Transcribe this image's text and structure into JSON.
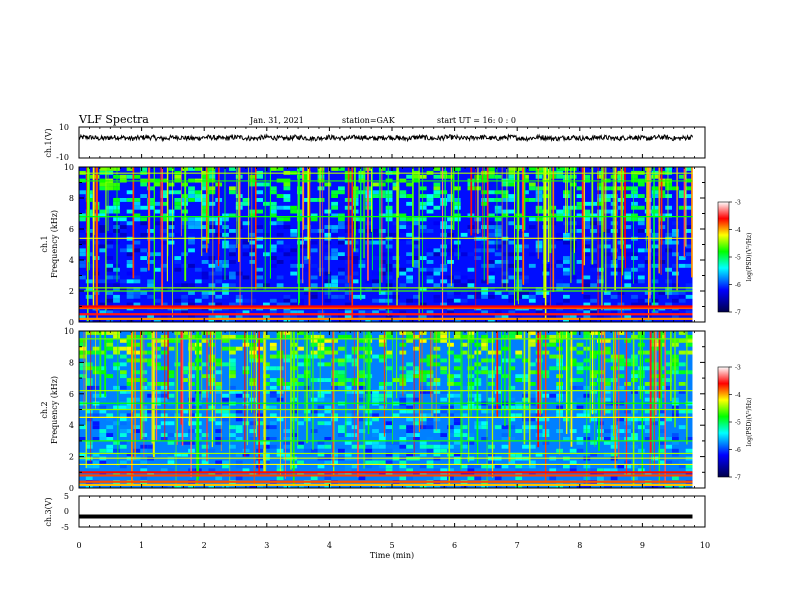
{
  "header": {
    "title": "VLF Spectra",
    "date": "Jan. 31, 2021",
    "station": "station=GAK",
    "start": "start  UT =   16: 0  : 0"
  },
  "chart_data": [
    {
      "type": "line",
      "panel": "ch1-waveform",
      "ylabel": "ch.1(V)",
      "ylim": [
        -10,
        10
      ],
      "yticks": [
        "10",
        "-10"
      ],
      "xlim": [
        0,
        10
      ],
      "series": [
        {
          "x_range": [
            0,
            9.8
          ],
          "description": "noisy waveform fluctuating near +3 V",
          "mean": 3,
          "amplitude": 2
        }
      ]
    },
    {
      "type": "heatmap",
      "panel": "ch1-spectrogram",
      "ylabel": "Frequency (kHz)",
      "channel_label": "ch.1",
      "ylim": [
        0,
        10
      ],
      "yticks": [
        "0",
        "2",
        "4",
        "6",
        "8",
        "10"
      ],
      "xlim": [
        0,
        10
      ],
      "data_x_range": [
        0,
        9.8
      ],
      "colorbar": {
        "label": "log(PSD)(V²/Hz)",
        "range": [
          -7,
          -3
        ],
        "ticks": [
          "-3",
          "-4",
          "-5",
          "-6",
          "-7"
        ]
      },
      "lines_khz": [
        0.2,
        0.5,
        0.9,
        1.0,
        2.0,
        2.2,
        5.4,
        6.8,
        9.1,
        9.6
      ],
      "background_level": -6.3
    },
    {
      "type": "heatmap",
      "panel": "ch2-spectrogram",
      "ylabel": "Frequency (kHz)",
      "channel_label": "ch.2",
      "ylim": [
        0,
        10
      ],
      "yticks": [
        "0",
        "2",
        "4",
        "6",
        "8",
        "10"
      ],
      "xlim": [
        0,
        10
      ],
      "data_x_range": [
        0,
        9.8
      ],
      "colorbar": {
        "label": "log(PSD)(V²/Hz)",
        "range": [
          -7,
          -3
        ],
        "ticks": [
          "-3",
          "-4",
          "-5",
          "-6",
          "-7"
        ]
      },
      "lines_khz": [
        0.2,
        0.4,
        0.8,
        1.0,
        1.5,
        1.9,
        2.2,
        3.0,
        4.5,
        5.0,
        5.4,
        6.2,
        9.5
      ],
      "background_level": -6.0
    },
    {
      "type": "line",
      "panel": "ch3-waveform",
      "ylabel": "ch.3(V)",
      "ylim": [
        -5,
        5
      ],
      "yticks": [
        "5",
        "0",
        "-5"
      ],
      "xlim": [
        0,
        10
      ],
      "xlabel": "Time (min)",
      "xticks": [
        "0",
        "1",
        "2",
        "3",
        "4",
        "5",
        "6",
        "7",
        "8",
        "9",
        "10"
      ],
      "series": [
        {
          "x_range": [
            0,
            9.8
          ],
          "description": "flat thick line",
          "value": -1.6
        }
      ]
    }
  ],
  "colors": {
    "colormap": [
      "#00004a",
      "#0000ff",
      "#00ffff",
      "#00ff00",
      "#ffff00",
      "#ff0000",
      "#ffffff"
    ]
  }
}
